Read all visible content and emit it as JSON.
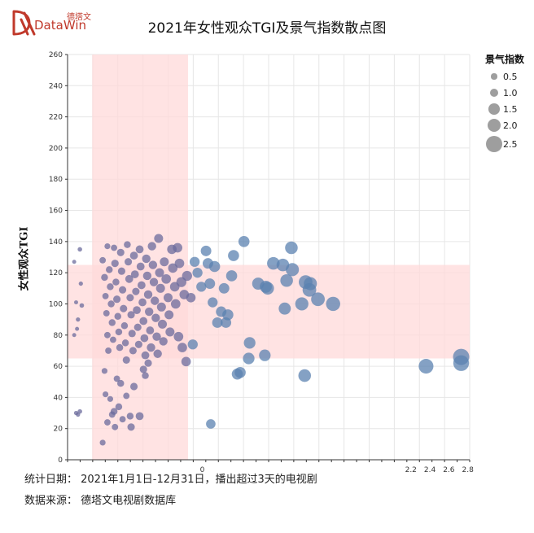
{
  "brand": {
    "cn": "德塔文",
    "en": "DataWin",
    "color": "#c0392b"
  },
  "title": "2021年女性观众TGI及景气指数散点图",
  "footer": {
    "line1": "统计日期：  2021年1月1日-12月31日，播出超过3天的电视剧",
    "line2": "数据来源：  德塔文电视剧数据库"
  },
  "chart_data": {
    "type": "scatter",
    "title": "2021年女性观众TGI及景气指数散点图",
    "xlabel": "",
    "ylabel": "女性观众TGI",
    "ylim": [
      0,
      260
    ],
    "yticks": [
      0,
      20,
      40,
      60,
      80,
      100,
      120,
      140,
      160,
      180,
      200,
      220,
      240,
      260
    ],
    "xticks": [
      0,
      2.2,
      2.4,
      2.6,
      2.8
    ],
    "xtick_labels": [
      "0",
      "2.2",
      "2.4",
      "2.6",
      "2.8"
    ],
    "grid": true,
    "highlight_bands": {
      "vertical": {
        "x_range": [
          -1.16,
          -0.15
        ],
        "color": "#ffd9d9"
      },
      "horizontal": {
        "y_range": [
          65,
          125
        ],
        "color": "#ffd9d9"
      }
    },
    "legend": {
      "title": "景气指数",
      "entries": [
        "0.5",
        "1.0",
        "1.5",
        "2.0",
        "2.5"
      ],
      "values": [
        0.5,
        1.0,
        1.5,
        2.0,
        2.5
      ],
      "position": "right"
    },
    "colors": {
      "left_group": "#6b6b9c",
      "right_group": "#5b82b0",
      "band": "#ffd9d9"
    },
    "points": [
      {
        "x": -1.35,
        "y": 127,
        "s": 0.15
      },
      {
        "x": -1.33,
        "y": 30,
        "s": 0.2
      },
      {
        "x": -1.31,
        "y": 29,
        "s": 0.2
      },
      {
        "x": -1.29,
        "y": 135,
        "s": 0.25
      },
      {
        "x": -1.28,
        "y": 113,
        "s": 0.2
      },
      {
        "x": -1.27,
        "y": 99,
        "s": 0.25
      },
      {
        "x": -1.29,
        "y": 31,
        "s": 0.25
      },
      {
        "x": -1.33,
        "y": 101,
        "s": 0.15
      },
      {
        "x": -1.32,
        "y": 84,
        "s": 0.15
      },
      {
        "x": -1.31,
        "y": 90,
        "s": 0.2
      },
      {
        "x": -1.35,
        "y": 80,
        "s": 0.15
      },
      {
        "x": -1.05,
        "y": 11,
        "s": 0.5
      },
      {
        "x": -1.03,
        "y": 57,
        "s": 0.5
      },
      {
        "x": -1.02,
        "y": 42,
        "s": 0.5
      },
      {
        "x": -1.0,
        "y": 24,
        "s": 0.6
      },
      {
        "x": -0.97,
        "y": 39,
        "s": 0.5
      },
      {
        "x": -0.95,
        "y": 29,
        "s": 0.6
      },
      {
        "x": -0.93,
        "y": 31,
        "s": 0.7
      },
      {
        "x": -0.92,
        "y": 21,
        "s": 0.6
      },
      {
        "x": -0.9,
        "y": 52,
        "s": 0.6
      },
      {
        "x": -0.88,
        "y": 34,
        "s": 0.7
      },
      {
        "x": -0.86,
        "y": 49,
        "s": 0.7
      },
      {
        "x": -0.84,
        "y": 26,
        "s": 0.6
      },
      {
        "x": -0.8,
        "y": 41,
        "s": 0.6
      },
      {
        "x": -0.76,
        "y": 28,
        "s": 0.7
      },
      {
        "x": -0.75,
        "y": 21,
        "s": 0.8
      },
      {
        "x": -0.72,
        "y": 47,
        "s": 0.8
      },
      {
        "x": -0.66,
        "y": 28,
        "s": 0.9
      },
      {
        "x": -0.62,
        "y": 58,
        "s": 0.8
      },
      {
        "x": -0.6,
        "y": 54,
        "s": 0.7
      },
      {
        "x": -0.57,
        "y": 62,
        "s": 0.8
      },
      {
        "x": -1.05,
        "y": 128,
        "s": 0.6
      },
      {
        "x": -1.03,
        "y": 117,
        "s": 0.7
      },
      {
        "x": -1.02,
        "y": 105,
        "s": 0.6
      },
      {
        "x": -1.01,
        "y": 94,
        "s": 0.6
      },
      {
        "x": -1.0,
        "y": 80,
        "s": 0.6
      },
      {
        "x": -0.99,
        "y": 70,
        "s": 0.6
      },
      {
        "x": -1.0,
        "y": 137,
        "s": 0.5
      },
      {
        "x": -0.98,
        "y": 122,
        "s": 0.7
      },
      {
        "x": -0.97,
        "y": 111,
        "s": 0.7
      },
      {
        "x": -0.96,
        "y": 100,
        "s": 0.7
      },
      {
        "x": -0.95,
        "y": 88,
        "s": 0.7
      },
      {
        "x": -0.94,
        "y": 77,
        "s": 0.6
      },
      {
        "x": -0.93,
        "y": 136,
        "s": 0.6
      },
      {
        "x": -0.92,
        "y": 126,
        "s": 0.8
      },
      {
        "x": -0.91,
        "y": 114,
        "s": 0.7
      },
      {
        "x": -0.9,
        "y": 103,
        "s": 0.8
      },
      {
        "x": -0.89,
        "y": 92,
        "s": 0.7
      },
      {
        "x": -0.88,
        "y": 82,
        "s": 0.7
      },
      {
        "x": -0.87,
        "y": 72,
        "s": 0.7
      },
      {
        "x": -0.86,
        "y": 133,
        "s": 0.8
      },
      {
        "x": -0.85,
        "y": 121,
        "s": 0.8
      },
      {
        "x": -0.84,
        "y": 109,
        "s": 0.8
      },
      {
        "x": -0.83,
        "y": 97,
        "s": 0.8
      },
      {
        "x": -0.82,
        "y": 86,
        "s": 0.7
      },
      {
        "x": -0.81,
        "y": 75,
        "s": 0.7
      },
      {
        "x": -0.8,
        "y": 64,
        "s": 0.8
      },
      {
        "x": -0.79,
        "y": 138,
        "s": 0.7
      },
      {
        "x": -0.78,
        "y": 127,
        "s": 0.8
      },
      {
        "x": -0.77,
        "y": 116,
        "s": 0.9
      },
      {
        "x": -0.76,
        "y": 104,
        "s": 0.8
      },
      {
        "x": -0.75,
        "y": 93,
        "s": 0.8
      },
      {
        "x": -0.74,
        "y": 81,
        "s": 0.8
      },
      {
        "x": -0.73,
        "y": 70,
        "s": 0.8
      },
      {
        "x": -0.72,
        "y": 131,
        "s": 0.9
      },
      {
        "x": -0.71,
        "y": 119,
        "s": 0.9
      },
      {
        "x": -0.7,
        "y": 108,
        "s": 0.8
      },
      {
        "x": -0.69,
        "y": 96,
        "s": 0.9
      },
      {
        "x": -0.68,
        "y": 85,
        "s": 0.8
      },
      {
        "x": -0.67,
        "y": 74,
        "s": 0.8
      },
      {
        "x": -0.66,
        "y": 135,
        "s": 0.9
      },
      {
        "x": -0.65,
        "y": 124,
        "s": 0.9
      },
      {
        "x": -0.64,
        "y": 112,
        "s": 0.9
      },
      {
        "x": -0.63,
        "y": 101,
        "s": 0.9
      },
      {
        "x": -0.62,
        "y": 89,
        "s": 0.9
      },
      {
        "x": -0.61,
        "y": 78,
        "s": 0.9
      },
      {
        "x": -0.6,
        "y": 67,
        "s": 0.9
      },
      {
        "x": -0.59,
        "y": 129,
        "s": 1.0
      },
      {
        "x": -0.58,
        "y": 118,
        "s": 1.0
      },
      {
        "x": -0.57,
        "y": 106,
        "s": 1.0
      },
      {
        "x": -0.56,
        "y": 95,
        "s": 1.0
      },
      {
        "x": -0.55,
        "y": 83,
        "s": 0.9
      },
      {
        "x": -0.54,
        "y": 72,
        "s": 1.0
      },
      {
        "x": -0.53,
        "y": 137,
        "s": 1.0
      },
      {
        "x": -0.52,
        "y": 125,
        "s": 1.0
      },
      {
        "x": -0.51,
        "y": 114,
        "s": 1.0
      },
      {
        "x": -0.5,
        "y": 102,
        "s": 1.0
      },
      {
        "x": -0.49,
        "y": 91,
        "s": 1.0
      },
      {
        "x": -0.48,
        "y": 79,
        "s": 1.0
      },
      {
        "x": -0.47,
        "y": 68,
        "s": 1.0
      },
      {
        "x": -0.46,
        "y": 142,
        "s": 1.1
      },
      {
        "x": -0.45,
        "y": 120,
        "s": 1.1
      },
      {
        "x": -0.44,
        "y": 110,
        "s": 1.1
      },
      {
        "x": -0.43,
        "y": 98,
        "s": 1.1
      },
      {
        "x": -0.42,
        "y": 87,
        "s": 1.1
      },
      {
        "x": -0.41,
        "y": 76,
        "s": 1.0
      },
      {
        "x": -0.4,
        "y": 127,
        "s": 1.1
      },
      {
        "x": -0.38,
        "y": 116,
        "s": 1.2
      },
      {
        "x": -0.36,
        "y": 104,
        "s": 1.1
      },
      {
        "x": -0.35,
        "y": 93,
        "s": 1.1
      },
      {
        "x": -0.34,
        "y": 82,
        "s": 1.1
      },
      {
        "x": -0.32,
        "y": 135,
        "s": 1.2
      },
      {
        "x": -0.31,
        "y": 123,
        "s": 1.2
      },
      {
        "x": -0.29,
        "y": 111,
        "s": 1.2
      },
      {
        "x": -0.28,
        "y": 100,
        "s": 1.2
      },
      {
        "x": -0.26,
        "y": 136,
        "s": 1.2
      },
      {
        "x": -0.25,
        "y": 79,
        "s": 1.2
      },
      {
        "x": -0.24,
        "y": 126,
        "s": 1.2
      },
      {
        "x": -0.22,
        "y": 114,
        "s": 1.3
      },
      {
        "x": -0.21,
        "y": 72,
        "s": 1.2
      },
      {
        "x": -0.19,
        "y": 106,
        "s": 1.2
      },
      {
        "x": -0.17,
        "y": 63,
        "s": 1.2
      },
      {
        "x": -0.16,
        "y": 118,
        "s": 1.3
      },
      {
        "x": -0.08,
        "y": 127,
        "s": 1.3
      },
      {
        "x": -0.12,
        "y": 104,
        "s": 1.2
      },
      {
        "x": -0.1,
        "y": 74,
        "s": 1.3
      },
      {
        "x": -0.05,
        "y": 120,
        "s": 1.3
      },
      {
        "x": -0.01,
        "y": 111,
        "s": 1.3
      },
      {
        "x": 0.04,
        "y": 134,
        "s": 1.4
      },
      {
        "x": 0.06,
        "y": 126,
        "s": 1.4
      },
      {
        "x": 0.08,
        "y": 113,
        "s": 1.4
      },
      {
        "x": 0.09,
        "y": 23,
        "s": 1.2
      },
      {
        "x": 0.11,
        "y": 101,
        "s": 1.3
      },
      {
        "x": 0.13,
        "y": 124,
        "s": 1.5
      },
      {
        "x": 0.16,
        "y": 88,
        "s": 1.4
      },
      {
        "x": 0.2,
        "y": 95,
        "s": 1.4
      },
      {
        "x": 0.23,
        "y": 110,
        "s": 1.4
      },
      {
        "x": 0.25,
        "y": 88,
        "s": 1.4
      },
      {
        "x": 0.27,
        "y": 93,
        "s": 1.5
      },
      {
        "x": 0.31,
        "y": 118,
        "s": 1.5
      },
      {
        "x": 0.33,
        "y": 131,
        "s": 1.5
      },
      {
        "x": 0.37,
        "y": 55,
        "s": 1.5
      },
      {
        "x": 0.4,
        "y": 56,
        "s": 1.5
      },
      {
        "x": 0.44,
        "y": 140,
        "s": 1.5
      },
      {
        "x": 0.5,
        "y": 75,
        "s": 1.6
      },
      {
        "x": 0.49,
        "y": 65,
        "s": 1.6
      },
      {
        "x": 0.59,
        "y": 113,
        "s": 1.7
      },
      {
        "x": 0.67,
        "y": 111,
        "s": 1.7
      },
      {
        "x": 0.66,
        "y": 67,
        "s": 1.6
      },
      {
        "x": 0.69,
        "y": 110,
        "s": 1.8
      },
      {
        "x": 0.75,
        "y": 126,
        "s": 1.8
      },
      {
        "x": 0.85,
        "y": 125,
        "s": 1.8
      },
      {
        "x": 0.87,
        "y": 97,
        "s": 1.7
      },
      {
        "x": 0.89,
        "y": 115,
        "s": 1.8
      },
      {
        "x": 0.94,
        "y": 136,
        "s": 1.8
      },
      {
        "x": 0.95,
        "y": 122,
        "s": 1.9
      },
      {
        "x": 1.05,
        "y": 100,
        "s": 1.9
      },
      {
        "x": 1.08,
        "y": 54,
        "s": 1.8
      },
      {
        "x": 1.09,
        "y": 114,
        "s": 2.0
      },
      {
        "x": 1.13,
        "y": 109,
        "s": 2.0
      },
      {
        "x": 1.14,
        "y": 113,
        "s": 1.9
      },
      {
        "x": 1.22,
        "y": 103,
        "s": 2.0
      },
      {
        "x": 1.38,
        "y": 100,
        "s": 2.1
      },
      {
        "x": 2.36,
        "y": 60,
        "s": 2.2
      },
      {
        "x": 2.73,
        "y": 66,
        "s": 2.5
      },
      {
        "x": 2.73,
        "y": 62,
        "s": 2.4
      }
    ]
  }
}
